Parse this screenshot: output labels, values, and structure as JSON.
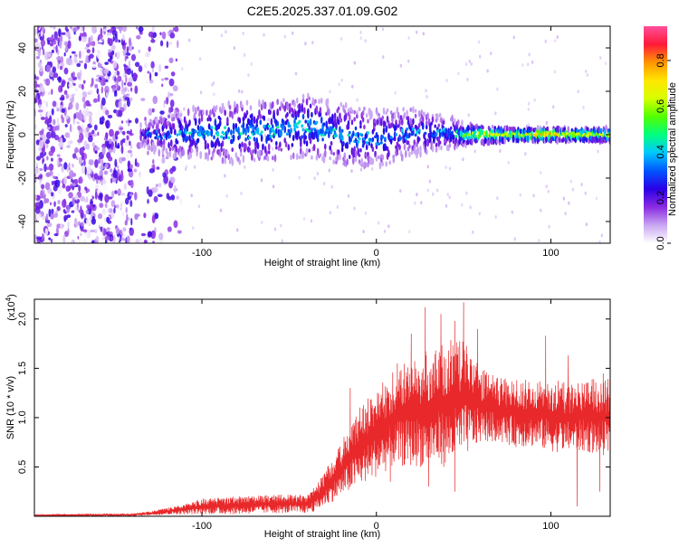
{
  "page": {
    "title": "C2E5.2025.337.01.09.G02"
  },
  "colorbar": {
    "label": "Normalized spectral amplitude",
    "ticks": [
      0.0,
      0.2,
      0.4,
      0.6,
      0.8
    ],
    "tick_labels": [
      "0.0",
      "0.2",
      "0.4",
      "0.6",
      "0.8"
    ],
    "stops": [
      "#ffffff",
      "#c9a6f2",
      "#8a2be2",
      "#2a00e6",
      "#0055ff",
      "#00c8ff",
      "#00ff7f",
      "#52ff00",
      "#d6ff00",
      "#ffe600",
      "#ff9500",
      "#ff1a3a",
      "#ff4f9a"
    ]
  },
  "chart_data": [
    {
      "type": "heatmap",
      "title": "C2E5.2025.337.01.09.G02",
      "xlabel": "Height of straight line (km)",
      "ylabel": "Frequency (Hz)",
      "xlim": [
        -196,
        134
      ],
      "ylim": [
        -50,
        50
      ],
      "xticks": [
        -100,
        0,
        100
      ],
      "xtick_labels": [
        "-100",
        "0",
        "100"
      ],
      "yticks": [
        -40,
        -20,
        0,
        20,
        40
      ],
      "ytick_labels": [
        "-40",
        "-20",
        "0",
        "20",
        "40"
      ],
      "signal_band": [
        {
          "x": -135,
          "center": 0,
          "halfwidth": 5,
          "amp": 0.25
        },
        {
          "x": -120,
          "center": 0,
          "halfwidth": 10,
          "amp": 0.3
        },
        {
          "x": -100,
          "center": 1,
          "halfwidth": 12,
          "amp": 0.35
        },
        {
          "x": -80,
          "center": 1,
          "halfwidth": 14,
          "amp": 0.35
        },
        {
          "x": -60,
          "center": 2,
          "halfwidth": 14,
          "amp": 0.35
        },
        {
          "x": -40,
          "center": 4,
          "halfwidth": 14,
          "amp": 0.38
        },
        {
          "x": -20,
          "center": 0,
          "halfwidth": 14,
          "amp": 0.35
        },
        {
          "x": 0,
          "center": -2,
          "halfwidth": 13,
          "amp": 0.3
        },
        {
          "x": 20,
          "center": 1,
          "halfwidth": 11,
          "amp": 0.3
        },
        {
          "x": 40,
          "center": 1,
          "halfwidth": 8,
          "amp": 0.3
        },
        {
          "x": 50,
          "center": 0,
          "halfwidth": 5,
          "amp": 0.45
        },
        {
          "x": 60,
          "center": 0,
          "halfwidth": 4,
          "amp": 0.65
        },
        {
          "x": 80,
          "center": 0,
          "halfwidth": 3,
          "amp": 0.55
        },
        {
          "x": 95,
          "center": 0,
          "halfwidth": 3,
          "amp": 0.8
        },
        {
          "x": 110,
          "center": 0,
          "halfwidth": 3,
          "amp": 0.6
        },
        {
          "x": 134,
          "center": 0,
          "halfwidth": 3,
          "amp": 0.6
        }
      ],
      "noise_region": {
        "x_from": -196,
        "x_to": -112,
        "amp": 0.15
      },
      "colorbar_range": [
        0,
        0.95
      ]
    },
    {
      "type": "line",
      "xlabel": "Height of straight line (km)",
      "ylabel": "SNR (10 * v/v)",
      "y_multiplier": "(x10",
      "y_multiplier_exp": "4",
      "y_multiplier_close": ")",
      "xlim": [
        -196,
        134
      ],
      "ylim": [
        0,
        2.2
      ],
      "xticks": [
        -100,
        0,
        100
      ],
      "xtick_labels": [
        "-100",
        "0",
        "100"
      ],
      "yticks": [
        0.5,
        1.0,
        1.5,
        2.0
      ],
      "ytick_labels": [
        "0.5",
        "1.0",
        "1.5",
        "2.0"
      ],
      "color": "#e8282a",
      "series": [
        {
          "envelope": [
            {
              "x": -196,
              "min": 0.0,
              "max": 0.02
            },
            {
              "x": -140,
              "min": 0.0,
              "max": 0.03
            },
            {
              "x": -130,
              "min": 0.01,
              "max": 0.05
            },
            {
              "x": -110,
              "min": 0.02,
              "max": 0.12
            },
            {
              "x": -100,
              "min": 0.02,
              "max": 0.18
            },
            {
              "x": -80,
              "min": 0.02,
              "max": 0.2
            },
            {
              "x": -60,
              "min": 0.03,
              "max": 0.22
            },
            {
              "x": -40,
              "min": 0.03,
              "max": 0.22
            },
            {
              "x": -35,
              "min": 0.05,
              "max": 0.3
            },
            {
              "x": -30,
              "min": 0.1,
              "max": 0.45
            },
            {
              "x": -25,
              "min": 0.15,
              "max": 0.6
            },
            {
              "x": -20,
              "min": 0.2,
              "max": 0.75
            },
            {
              "x": -15,
              "min": 0.25,
              "max": 0.95
            },
            {
              "x": -10,
              "min": 0.3,
              "max": 1.1
            },
            {
              "x": 0,
              "min": 0.4,
              "max": 1.3
            },
            {
              "x": 10,
              "min": 0.5,
              "max": 1.5
            },
            {
              "x": 20,
              "min": 0.5,
              "max": 1.6
            },
            {
              "x": 30,
              "min": 0.5,
              "max": 1.7
            },
            {
              "x": 40,
              "min": 0.5,
              "max": 1.8
            },
            {
              "x": 50,
              "min": 0.6,
              "max": 1.8
            },
            {
              "x": 60,
              "min": 0.75,
              "max": 1.5
            },
            {
              "x": 70,
              "min": 0.75,
              "max": 1.4
            },
            {
              "x": 80,
              "min": 0.7,
              "max": 1.4
            },
            {
              "x": 90,
              "min": 0.7,
              "max": 1.4
            },
            {
              "x": 100,
              "min": 0.65,
              "max": 1.4
            },
            {
              "x": 110,
              "min": 0.65,
              "max": 1.35
            },
            {
              "x": 120,
              "min": 0.65,
              "max": 1.4
            },
            {
              "x": 134,
              "min": 0.6,
              "max": 1.4
            }
          ],
          "peaks": [
            {
              "x": 50,
              "y": 2.17
            },
            {
              "x": 28,
              "y": 2.12
            },
            {
              "x": 37,
              "y": 2.05
            },
            {
              "x": 45,
              "y": 1.98
            },
            {
              "x": 58,
              "y": 1.9
            },
            {
              "x": 97,
              "y": 1.83
            },
            {
              "x": 110,
              "y": 1.63
            },
            {
              "x": 20,
              "y": 1.85
            },
            {
              "x": -15,
              "y": 1.3
            },
            {
              "x": 12,
              "y": 1.55
            },
            {
              "x": 130,
              "y": 1.45
            }
          ],
          "troughs": [
            {
              "x": 30,
              "y": 0.3
            },
            {
              "x": 45,
              "y": 0.25
            },
            {
              "x": 115,
              "y": 0.1
            },
            {
              "x": 128,
              "y": 0.25
            },
            {
              "x": 8,
              "y": 0.35
            }
          ]
        }
      ]
    }
  ]
}
